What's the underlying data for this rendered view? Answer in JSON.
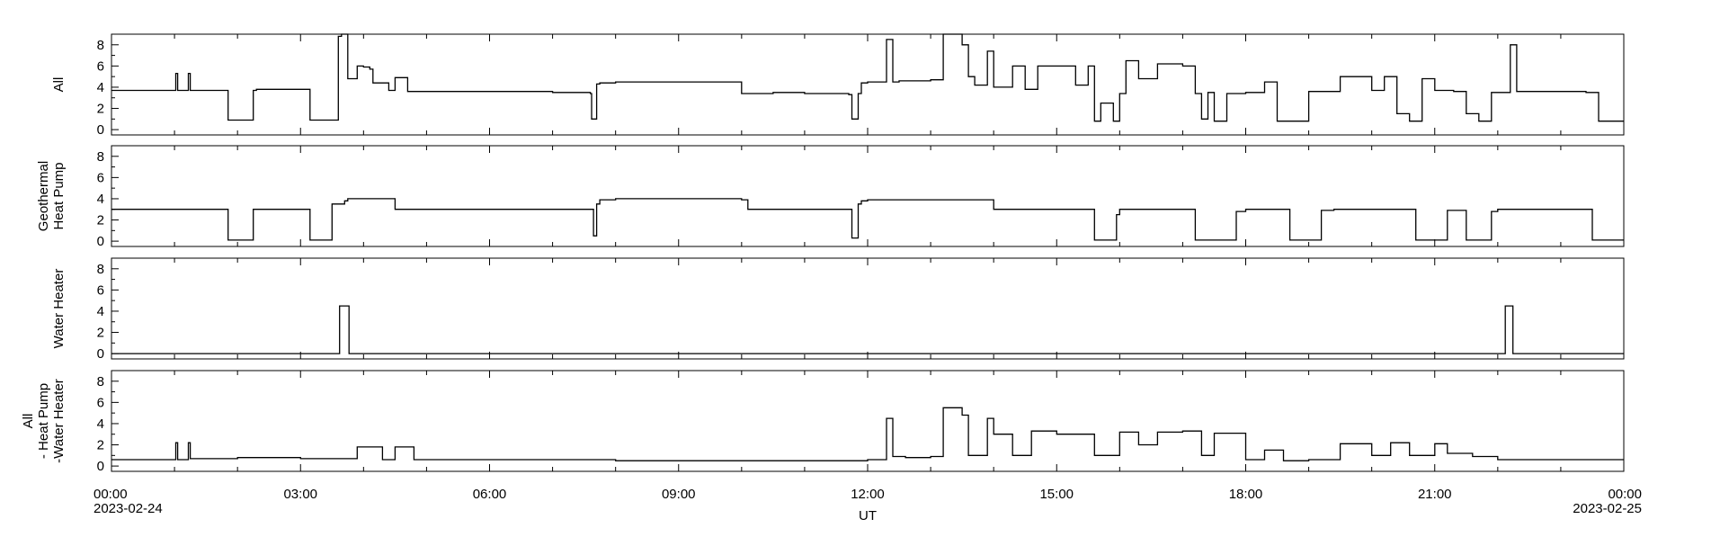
{
  "chart_data": {
    "type": "line",
    "xlabel": "UT",
    "x_range": [
      "2023-02-24 00:00",
      "2023-02-25 00:00"
    ],
    "x_ticks": [
      {
        "hour": 0,
        "label": "00:00",
        "sublabel": "2023-02-24"
      },
      {
        "hour": 3,
        "label": "03:00",
        "sublabel": ""
      },
      {
        "hour": 6,
        "label": "06:00",
        "sublabel": ""
      },
      {
        "hour": 9,
        "label": "09:00",
        "sublabel": ""
      },
      {
        "hour": 12,
        "label": "12:00",
        "sublabel": ""
      },
      {
        "hour": 15,
        "label": "15:00",
        "sublabel": ""
      },
      {
        "hour": 18,
        "label": "18:00",
        "sublabel": ""
      },
      {
        "hour": 21,
        "label": "21:00",
        "sublabel": ""
      },
      {
        "hour": 24,
        "label": "00:00",
        "sublabel": "2023-02-25"
      }
    ],
    "panels": [
      {
        "ylabel": [
          "All"
        ],
        "ylim": [
          -0.5,
          9
        ],
        "yticks": [
          "0",
          "2",
          "4",
          "6",
          "8"
        ],
        "x_hours": [
          0,
          1.0,
          1.02,
          1.05,
          1.2,
          1.22,
          1.25,
          1.85,
          1.87,
          2.25,
          2.3,
          3.1,
          3.15,
          3.4,
          3.45,
          3.6,
          3.65,
          3.75,
          3.78,
          3.9,
          4.0,
          4.1,
          4.15,
          4.4,
          4.5,
          4.55,
          4.7,
          5.0,
          5.05,
          7.0,
          7.6,
          7.62,
          7.7,
          7.75,
          8.0,
          10.0,
          10.5,
          11.0,
          11.7,
          11.75,
          11.85,
          11.9,
          12.0,
          12.3,
          12.4,
          12.5,
          13.0,
          13.2,
          13.5,
          13.6,
          13.7,
          13.9,
          14.0,
          14.3,
          14.5,
          14.7,
          15.0,
          15.3,
          15.5,
          15.6,
          15.7,
          15.9,
          16.0,
          16.1,
          16.3,
          16.6,
          17.0,
          17.2,
          17.3,
          17.4,
          17.5,
          17.7,
          17.8,
          18.0,
          18.3,
          18.5,
          18.8,
          19.0,
          19.5,
          20.0,
          20.2,
          20.4,
          20.6,
          20.8,
          21.0,
          21.3,
          21.5,
          21.7,
          21.8,
          21.9,
          22.0,
          22.2,
          22.3,
          23.0,
          23.4,
          23.6,
          24.0
        ],
        "values": [
          3.7,
          3.7,
          5.3,
          3.7,
          3.7,
          5.3,
          3.7,
          0.9,
          0.9,
          3.7,
          3.8,
          3.8,
          0.9,
          0.9,
          0.9,
          8.8,
          9.0,
          4.8,
          4.8,
          6.0,
          5.9,
          5.7,
          4.4,
          3.7,
          4.9,
          4.9,
          3.6,
          3.6,
          3.6,
          3.5,
          3.4,
          1.0,
          4.3,
          4.4,
          4.5,
          3.4,
          3.5,
          3.4,
          3.3,
          1.0,
          3.4,
          4.4,
          4.5,
          8.5,
          4.5,
          4.6,
          4.7,
          9.0,
          8.0,
          5.0,
          4.2,
          7.4,
          4.0,
          6.0,
          3.8,
          6.0,
          6.0,
          4.2,
          6.0,
          0.8,
          2.5,
          0.8,
          3.4,
          6.5,
          4.8,
          6.2,
          6.0,
          3.4,
          1.0,
          3.5,
          0.8,
          3.4,
          3.4,
          3.5,
          4.5,
          0.8,
          0.8,
          3.6,
          5.0,
          3.7,
          5.0,
          1.5,
          0.8,
          4.8,
          3.7,
          3.6,
          1.5,
          0.8,
          0.8,
          3.5,
          3.5,
          8.0,
          3.6,
          3.6,
          3.5,
          0.8,
          0.8
        ]
      },
      {
        "ylabel": [
          "Geothermal",
          "Heat Pump"
        ],
        "ylim": [
          -0.5,
          9
        ],
        "yticks": [
          "0",
          "2",
          "4",
          "6",
          "8"
        ],
        "x_hours": [
          0,
          1.85,
          2.25,
          3.1,
          3.15,
          3.45,
          3.5,
          3.7,
          3.75,
          4.0,
          4.5,
          5.0,
          7.6,
          7.65,
          7.7,
          7.75,
          8.0,
          10.0,
          10.1,
          11.0,
          11.7,
          11.75,
          11.85,
          11.9,
          12.0,
          13.6,
          14.0,
          15.0,
          15.6,
          15.95,
          16.0,
          17.0,
          17.2,
          17.8,
          17.85,
          18.0,
          18.7,
          19.2,
          19.4,
          20.0,
          20.7,
          21.2,
          21.5,
          21.9,
          22.0,
          22.3,
          23.5,
          24.0
        ],
        "values": [
          3.0,
          0.1,
          3.0,
          3.0,
          0.1,
          0.1,
          3.5,
          3.8,
          4.0,
          4.0,
          3.0,
          3.0,
          3.0,
          0.5,
          3.5,
          3.9,
          4.0,
          3.9,
          3.0,
          3.0,
          3.0,
          0.3,
          3.5,
          3.8,
          3.9,
          3.9,
          3.0,
          3.0,
          0.1,
          2.5,
          3.0,
          3.0,
          0.1,
          0.1,
          2.8,
          3.0,
          0.1,
          2.9,
          3.0,
          3.0,
          0.1,
          2.9,
          0.1,
          2.8,
          3.0,
          3.0,
          0.1,
          0.1
        ]
      },
      {
        "ylabel": [
          "Water Heater"
        ],
        "ylim": [
          -0.5,
          9
        ],
        "yticks": [
          "0",
          "2",
          "4",
          "6",
          "8"
        ],
        "x_hours": [
          0,
          3.6,
          3.62,
          3.75,
          3.77,
          22.1,
          22.12,
          22.22,
          22.24,
          24.0
        ],
        "values": [
          0.0,
          0.0,
          4.5,
          4.5,
          0.0,
          0.0,
          4.5,
          4.5,
          0.0,
          0.0
        ]
      },
      {
        "ylabel": [
          "All",
          "- Heat Pump",
          "-Water Heater"
        ],
        "ylim": [
          -0.5,
          9
        ],
        "yticks": [
          "0",
          "2",
          "4",
          "6",
          "8"
        ],
        "x_hours": [
          0,
          1.0,
          1.02,
          1.05,
          1.2,
          1.22,
          1.25,
          2.0,
          3.0,
          3.9,
          4.0,
          4.3,
          4.5,
          4.6,
          4.8,
          5.0,
          8.0,
          11.0,
          12.0,
          12.3,
          12.4,
          12.6,
          13.0,
          13.2,
          13.5,
          13.6,
          13.9,
          14.0,
          14.3,
          14.6,
          15.0,
          15.3,
          15.6,
          16.0,
          16.3,
          16.6,
          17.0,
          17.3,
          17.5,
          18.0,
          18.3,
          18.6,
          19.0,
          19.5,
          20.0,
          20.3,
          20.6,
          21.0,
          21.2,
          21.6,
          22.0,
          23.0,
          24.0
        ],
        "values": [
          0.6,
          0.6,
          2.2,
          0.6,
          0.6,
          2.2,
          0.7,
          0.8,
          0.7,
          1.8,
          1.8,
          0.6,
          1.8,
          1.8,
          0.6,
          0.6,
          0.5,
          0.5,
          0.6,
          4.5,
          0.9,
          0.8,
          0.9,
          5.5,
          4.8,
          1.0,
          4.5,
          3.0,
          1.0,
          3.3,
          3.0,
          3.0,
          1.0,
          3.2,
          2.0,
          3.2,
          3.3,
          1.0,
          3.1,
          0.6,
          1.5,
          0.5,
          0.6,
          2.1,
          1.0,
          2.2,
          1.0,
          2.1,
          1.2,
          0.9,
          0.6,
          0.6,
          0.6
        ]
      }
    ]
  }
}
